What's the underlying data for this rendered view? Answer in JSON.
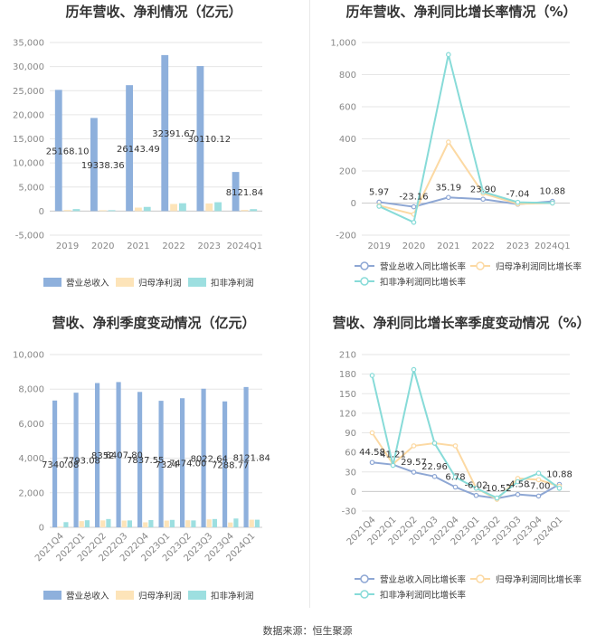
{
  "colors": {
    "revenue": "#8eb0dc",
    "net_profit": "#fde4b9",
    "deducted_profit": "#9ddfe0",
    "revenue_line": "#8ea7d4",
    "net_line": "#fcd9a3",
    "deducted_line": "#87dbd8",
    "grid": "#e6e6e6",
    "axis_text": "#888888"
  },
  "footer": "数据来源：恒生聚源",
  "chart_data": [
    {
      "type": "bar",
      "title": "历年营收、净利情况（亿元）",
      "categories": [
        "2019",
        "2020",
        "2021",
        "2022",
        "2023",
        "2024Q1"
      ],
      "ylim": [
        -5000,
        35000
      ],
      "yticks": [
        -5000,
        0,
        5000,
        10000,
        15000,
        20000,
        25000,
        30000,
        35000
      ],
      "ytick_labels": [
        "-5,000",
        "0",
        "5,000",
        "10,000",
        "15,000",
        "20,000",
        "25,000",
        "30,000",
        "35,000"
      ],
      "series": [
        {
          "name": "营业总收入",
          "values": [
            25168.1,
            19338.36,
            26143.49,
            32391.67,
            30110.12,
            8121.84
          ]
        },
        {
          "name": "归母净利润",
          "values": [
            220,
            180,
            720,
            1480,
            1580,
            240
          ]
        },
        {
          "name": "扣非净利润",
          "values": [
            420,
            190,
            870,
            1630,
            1840,
            410
          ]
        }
      ],
      "data_labels": [
        "25168.10",
        "19338.36",
        "26143.49",
        "32391.67",
        "30110.12",
        "8121.84"
      ],
      "legend": "bottom"
    },
    {
      "type": "line",
      "title": "历年营收、净利同比增长率情况（%）",
      "categories": [
        "2019",
        "2020",
        "2021",
        "2022",
        "2023",
        "2024Q1"
      ],
      "ylim": [
        -200,
        1000
      ],
      "yticks": [
        -200,
        0,
        200,
        400,
        600,
        800,
        1000
      ],
      "ytick_labels": [
        "-200",
        "0",
        "200",
        "400",
        "600",
        "800",
        "1,000"
      ],
      "series": [
        {
          "name": "营业总收入同比增长率",
          "values": [
            5.97,
            -23.16,
            35.19,
            23.9,
            -7.04,
            10.88
          ]
        },
        {
          "name": "归母净利润同比增长率",
          "values": [
            -15,
            -70,
            380,
            60,
            -5,
            0
          ]
        },
        {
          "name": "扣非净利润同比增长率",
          "values": [
            -20,
            -120,
            925,
            70,
            5,
            0
          ]
        }
      ],
      "data_labels": [
        "5.97",
        "-23.16",
        "35.19",
        "23.90",
        "-7.04",
        "10.88"
      ],
      "legend": "bottom"
    },
    {
      "type": "bar",
      "title": "营收、净利季度变动情况（亿元）",
      "categories": [
        "2021Q4",
        "2022Q1",
        "2022Q2",
        "2022Q3",
        "2022Q4",
        "2023Q1",
        "2023Q2",
        "2023Q3",
        "2023Q4",
        "2024Q1"
      ],
      "ylim": [
        0,
        10000
      ],
      "yticks": [
        0,
        2000,
        4000,
        6000,
        8000,
        10000
      ],
      "ytick_labels": [
        "0",
        "2,000",
        "4,000",
        "6,000",
        "8,000",
        "10,000"
      ],
      "series": [
        {
          "name": "营业总收入",
          "values": [
            7340.08,
            7793.08,
            8352,
            8407.8,
            7837.55,
            7324,
            7474.0,
            8022.64,
            7288.77,
            8121.84
          ]
        },
        {
          "name": "归母净利润",
          "values": [
            40,
            360,
            400,
            390,
            290,
            390,
            410,
            460,
            280,
            440
          ]
        },
        {
          "name": "扣非净利润",
          "values": [
            300,
            410,
            480,
            400,
            420,
            430,
            400,
            480,
            510,
            440
          ]
        }
      ],
      "data_labels": [
        "7340.08",
        "7793.08",
        "8352",
        "8407.80",
        "7837.55",
        "7324",
        "7474.00",
        "8022.64",
        "7288.77",
        "8121.84"
      ],
      "legend": "bottom"
    },
    {
      "type": "line",
      "title": "营收、净利同比增长率季度变动情况（%）",
      "categories": [
        "2021Q4",
        "2022Q1",
        "2022Q2",
        "2022Q3",
        "2022Q4",
        "2023Q1",
        "2023Q2",
        "2023Q3",
        "2023Q4",
        "2024Q1"
      ],
      "ylim": [
        -30,
        210
      ],
      "yticks": [
        -30,
        0,
        30,
        60,
        90,
        120,
        150,
        180,
        210
      ],
      "ytick_labels": [
        "-30",
        "0",
        "30",
        "60",
        "90",
        "120",
        "150",
        "180",
        "210"
      ],
      "series": [
        {
          "name": "营业总收入同比增长率",
          "values": [
            44.58,
            41.21,
            29.57,
            22.96,
            6.78,
            -6.02,
            -10.52,
            -4.58,
            -7.0,
            10.88
          ]
        },
        {
          "name": "归母净利润同比增长率",
          "values": [
            90,
            42,
            70,
            74,
            70,
            5,
            -12,
            20,
            18,
            8
          ]
        },
        {
          "name": "扣非净利润同比增长率",
          "values": [
            178,
            40,
            187,
            74,
            22,
            5,
            -10,
            15,
            28,
            5
          ]
        }
      ],
      "data_labels": [
        "44.58",
        "41.21",
        "29.57",
        "22.96",
        "6.78",
        "-6.02",
        "-10.52",
        "-4.58",
        "-7.00",
        "10.88"
      ],
      "legend": "bottom"
    }
  ]
}
